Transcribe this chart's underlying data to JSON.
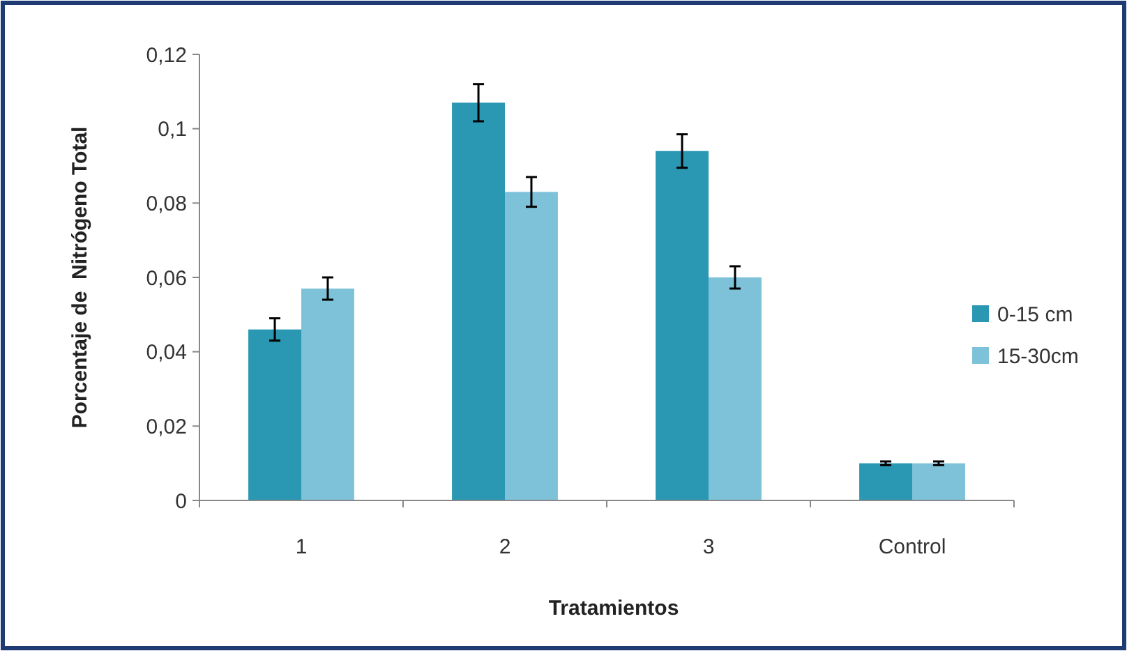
{
  "chart_data": {
    "type": "bar",
    "xlabel": "Tratamientos",
    "ylabel": "Porcentaje de  Nitrógeno Total",
    "categories": [
      "1",
      "2",
      "3",
      "Control"
    ],
    "series": [
      {
        "name": "0-15 cm",
        "color": "#2a97b3",
        "values": [
          0.046,
          0.107,
          0.094,
          0.01
        ],
        "errors": [
          0.003,
          0.005,
          0.0045,
          0.0005
        ]
      },
      {
        "name": "15-30cm",
        "color": "#7ec2da",
        "values": [
          0.057,
          0.083,
          0.06,
          0.01
        ],
        "errors": [
          0.003,
          0.004,
          0.003,
          0.0005
        ]
      }
    ],
    "ylim": [
      0,
      0.12
    ],
    "yticks": [
      {
        "value": 0,
        "label": "0"
      },
      {
        "value": 0.02,
        "label": "0,02"
      },
      {
        "value": 0.04,
        "label": "0,04"
      },
      {
        "value": 0.06,
        "label": "0,06"
      },
      {
        "value": 0.08,
        "label": "0,08"
      },
      {
        "value": 0.1,
        "label": "0,1"
      },
      {
        "value": 0.12,
        "label": "0,12"
      }
    ],
    "grid": false,
    "legend": "right"
  }
}
